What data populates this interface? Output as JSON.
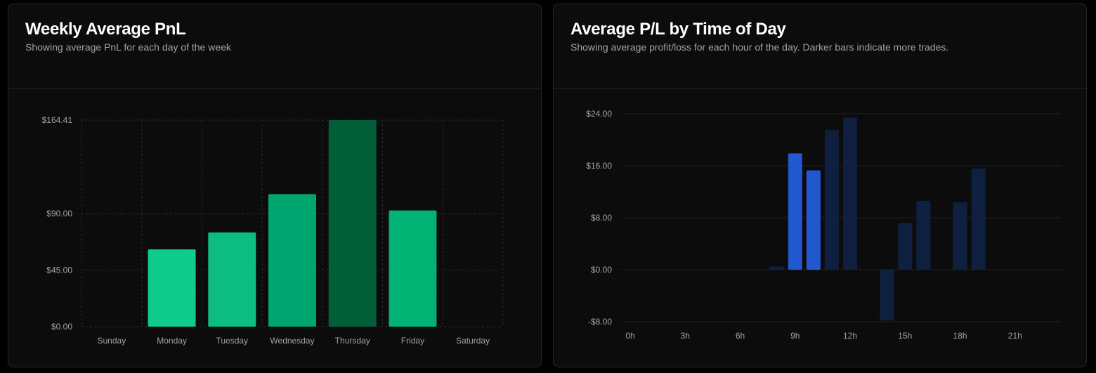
{
  "weekly": {
    "title": "Weekly Average PnL",
    "subtitle": "Showing average PnL for each day of the week"
  },
  "hourly": {
    "title": "Average P/L by Time of Day",
    "subtitle": "Showing average profit/loss for each hour of the day. Darker bars indicate more trades."
  },
  "chart_data": [
    {
      "type": "bar",
      "title": "Weekly Average PnL",
      "categories": [
        "Sunday",
        "Monday",
        "Tuesday",
        "Wednesday",
        "Thursday",
        "Friday",
        "Saturday"
      ],
      "values": [
        0,
        61.5,
        75,
        105.5,
        164.41,
        92.5,
        0
      ],
      "colors": [
        "#10cc8c",
        "#10cc8c",
        "#0bbd81",
        "#00a670",
        "#005e38",
        "#00b274",
        "#10cc8c"
      ],
      "ytick_labels": [
        "$0.00",
        "$45.00",
        "$90.00",
        "$164.41"
      ],
      "yticks": [
        0,
        45,
        90,
        164.41
      ],
      "ylim": [
        0,
        164.41
      ],
      "grid": true,
      "xlabel": "",
      "ylabel": ""
    },
    {
      "type": "bar",
      "title": "Average P/L by Time of Day",
      "x": [
        0,
        1,
        2,
        3,
        4,
        5,
        6,
        7,
        8,
        9,
        10,
        11,
        12,
        13,
        14,
        15,
        16,
        17,
        18,
        19,
        20,
        21,
        22,
        23
      ],
      "values": [
        0,
        0,
        0,
        0,
        0,
        0,
        0,
        0,
        0.5,
        17.9,
        15.3,
        21.5,
        23.4,
        0,
        -7.8,
        7.2,
        10.6,
        0,
        10.4,
        15.6,
        0,
        0,
        0,
        0
      ],
      "colors": [
        "#0f1f3f",
        "#0f1f3f",
        "#0f1f3f",
        "#0f1f3f",
        "#0f1f3f",
        "#0f1f3f",
        "#0f1f3f",
        "#0f1f3f",
        "#0f1f3f",
        "#2158d0",
        "#2158d0",
        "#0f1f3f",
        "#0f1f3f",
        "#0f1f3f",
        "#0f1f3f",
        "#0f1f3f",
        "#0f1f3f",
        "#0f1f3f",
        "#0f1f3f",
        "#0f1f3f",
        "#0f1f3f",
        "#0f1f3f",
        "#0f1f3f",
        "#0f1f3f"
      ],
      "xtick_values": [
        0,
        3,
        6,
        9,
        12,
        15,
        18,
        21
      ],
      "xtick_labels": [
        "0h",
        "3h",
        "6h",
        "9h",
        "12h",
        "15h",
        "18h",
        "21h"
      ],
      "ytick_labels": [
        "-$8.00",
        "$0.00",
        "$8.00",
        "$16.00",
        "$24.00"
      ],
      "yticks": [
        -8,
        0,
        8,
        16,
        24
      ],
      "ylim": [
        -8,
        24
      ],
      "grid": true,
      "xlabel": "",
      "ylabel": ""
    }
  ]
}
